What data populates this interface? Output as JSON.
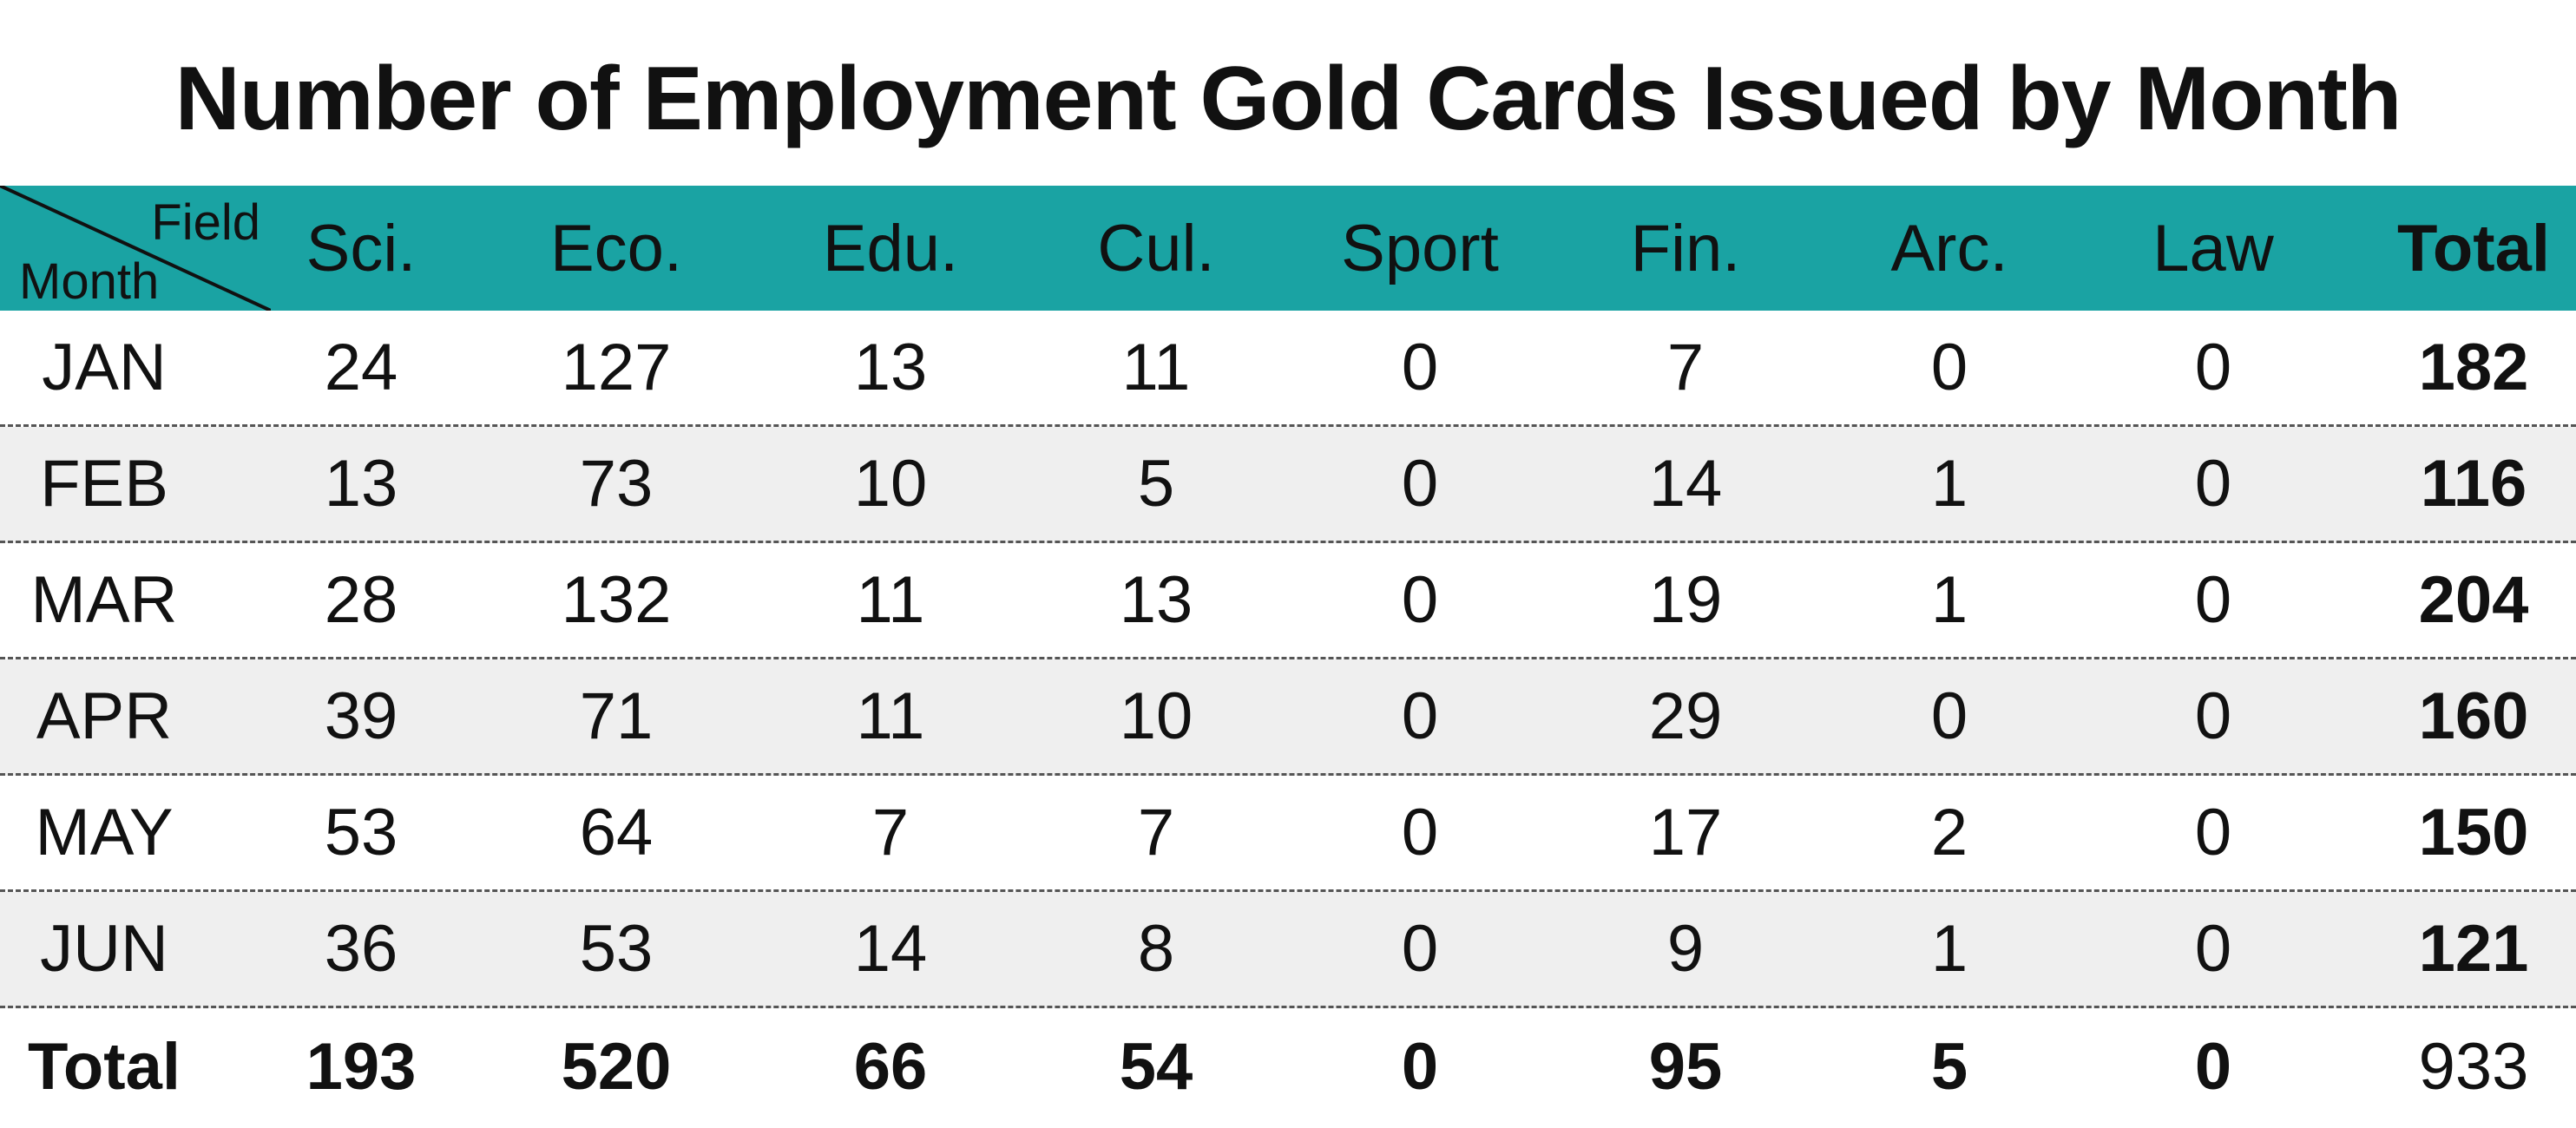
{
  "chart_data": {
    "type": "table",
    "title": "Number of Employment Gold Cards Issued by Month",
    "corner_labels": {
      "field": "Field",
      "month": "Month"
    },
    "columns": [
      "Sci.",
      "Eco.",
      "Edu.",
      "Cul.",
      "Sport",
      "Fin.",
      "Arc.",
      "Law",
      "Total"
    ],
    "rows": [
      {
        "label": "JAN",
        "values": [
          "24",
          "127",
          "13",
          "11",
          "0",
          "7",
          "0",
          "0",
          "182"
        ]
      },
      {
        "label": "FEB",
        "values": [
          "13",
          "73",
          "10",
          "5",
          "0",
          "14",
          "1",
          "0",
          "116"
        ]
      },
      {
        "label": "MAR",
        "values": [
          "28",
          "132",
          "11",
          "13",
          "0",
          "19",
          "1",
          "0",
          "204"
        ]
      },
      {
        "label": "APR",
        "values": [
          "39",
          "71",
          "11",
          "10",
          "0",
          "29",
          "0",
          "0",
          "160"
        ]
      },
      {
        "label": "MAY",
        "values": [
          "53",
          "64",
          "7",
          "7",
          "0",
          "17",
          "2",
          "0",
          "150"
        ]
      },
      {
        "label": "JUN",
        "values": [
          "36",
          "53",
          "14",
          "8",
          "0",
          "9",
          "1",
          "0",
          "121"
        ]
      }
    ],
    "total_row": {
      "label": "Total",
      "values": [
        "193",
        "520",
        "66",
        "54",
        "0",
        "95",
        "5",
        "0",
        "933"
      ]
    }
  },
  "colors": {
    "header_bg": "#1aa3a3",
    "stripe_bg": "#efefef",
    "text": "#111111"
  }
}
